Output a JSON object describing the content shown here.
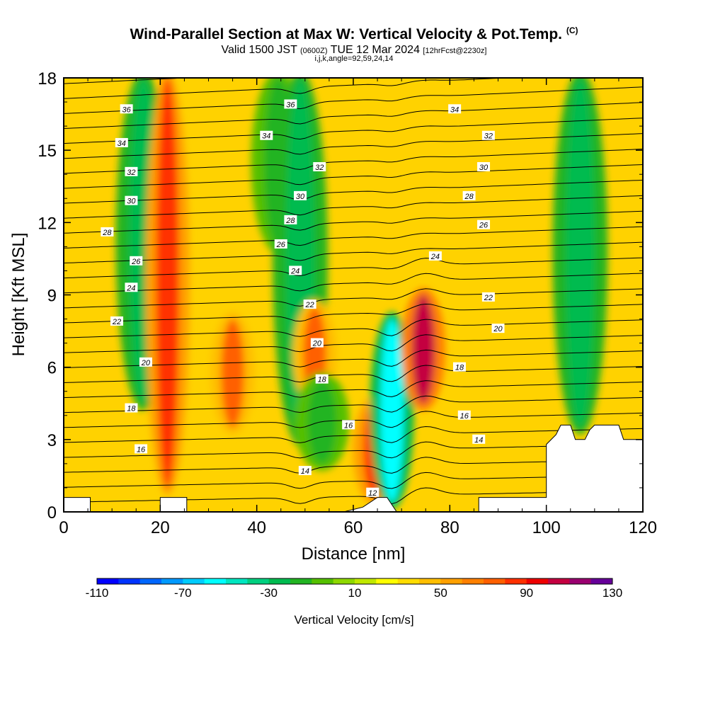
{
  "title": {
    "main": "Wind-Parallel Section at Max W: Vertical Velocity & Pot.Temp.",
    "mark": "(C)"
  },
  "subtitle": {
    "valid": "Valid 1500 JST",
    "zulu": "(0600Z)",
    "date": "TUE 12 Mar 2024",
    "fcst": "[12hrFcst@2230z]"
  },
  "indices": "i,j,k,angle=92,59,24,14",
  "chart_data": {
    "type": "heatmap",
    "xlabel": "Distance [nm]",
    "ylabel": "Height [Kft MSL]",
    "xlim": [
      0,
      120
    ],
    "ylim": [
      0,
      18
    ],
    "x_ticks": [
      0,
      20,
      40,
      60,
      80,
      100,
      120
    ],
    "y_ticks": [
      0,
      3,
      6,
      9,
      12,
      15,
      18
    ],
    "colorbar": {
      "label": "Vertical Velocity [cm/s]",
      "min": -110,
      "max": 130,
      "step": 10,
      "tick_labels": [
        -110,
        -70,
        -30,
        10,
        50,
        90,
        130
      ],
      "colors": [
        "#0000ff",
        "#0033ff",
        "#0066ff",
        "#0099ff",
        "#00ccff",
        "#00ffff",
        "#00e6c0",
        "#00d080",
        "#00bb50",
        "#22b422",
        "#55c000",
        "#8ed800",
        "#c0e800",
        "#ffff00",
        "#ffdc00",
        "#ffbe00",
        "#ffa000",
        "#ff8000",
        "#ff6000",
        "#ff3000",
        "#ee0000",
        "#c40040",
        "#9a0070",
        "#660099"
      ]
    },
    "vertical_velocity_features": [
      {
        "x_center": 16.5,
        "z_bottom": 4.5,
        "z_top": 18,
        "value": -30
      },
      {
        "x_center": 21.5,
        "z_bottom": 1.0,
        "z_top": 18,
        "value": 80
      },
      {
        "x_center": 35,
        "z_bottom": 3.5,
        "z_top": 8.0,
        "value": 70
      },
      {
        "x_center": 44.5,
        "z_bottom": 11.0,
        "z_top": 18,
        "value": -20
      },
      {
        "x_center": 49,
        "z_bottom": 3.0,
        "z_top": 18,
        "value": -30
      },
      {
        "x_center": 52,
        "z_bottom": 4.5,
        "z_top": 8.5,
        "value": 70
      },
      {
        "x_center": 53.5,
        "z_bottom": 2.0,
        "z_top": 5.5,
        "value": -20
      },
      {
        "x_center": 64.5,
        "z_bottom": 0.6,
        "z_top": 4.5,
        "value": 80
      },
      {
        "x_center": 68,
        "z_bottom": 0.4,
        "z_top": 8.0,
        "value": -60
      },
      {
        "x_center": 74.5,
        "z_bottom": 4.5,
        "z_top": 9.0,
        "value": 100
      },
      {
        "x_center": 107,
        "z_bottom": 3.5,
        "z_top": 18,
        "value": -30
      }
    ],
    "potential_temperature_contours": {
      "unit": "C",
      "levels": [
        12,
        14,
        16,
        18,
        20,
        22,
        24,
        26,
        28,
        30,
        32,
        34,
        36
      ],
      "labels": [
        {
          "text": "36",
          "x": 13,
          "z": 16.7
        },
        {
          "text": "34",
          "x": 12,
          "z": 15.3
        },
        {
          "text": "32",
          "x": 14,
          "z": 14.1
        },
        {
          "text": "30",
          "x": 14,
          "z": 12.9
        },
        {
          "text": "28",
          "x": 9,
          "z": 11.6
        },
        {
          "text": "26",
          "x": 15,
          "z": 10.4
        },
        {
          "text": "24",
          "x": 14,
          "z": 9.3
        },
        {
          "text": "22",
          "x": 11,
          "z": 7.9
        },
        {
          "text": "20",
          "x": 17,
          "z": 6.2
        },
        {
          "text": "18",
          "x": 14,
          "z": 4.3
        },
        {
          "text": "16",
          "x": 16,
          "z": 2.6
        },
        {
          "text": "36",
          "x": 47,
          "z": 16.9
        },
        {
          "text": "34",
          "x": 42,
          "z": 15.6
        },
        {
          "text": "32",
          "x": 53,
          "z": 14.3
        },
        {
          "text": "30",
          "x": 49,
          "z": 13.1
        },
        {
          "text": "28",
          "x": 47,
          "z": 12.1
        },
        {
          "text": "26",
          "x": 45,
          "z": 11.1
        },
        {
          "text": "24",
          "x": 48,
          "z": 10.0
        },
        {
          "text": "22",
          "x": 51,
          "z": 8.6
        },
        {
          "text": "20",
          "x": 52.5,
          "z": 7.0
        },
        {
          "text": "18",
          "x": 53.5,
          "z": 5.5
        },
        {
          "text": "16",
          "x": 59,
          "z": 3.6
        },
        {
          "text": "14",
          "x": 50,
          "z": 1.7
        },
        {
          "text": "12",
          "x": 64,
          "z": 0.8
        },
        {
          "text": "34",
          "x": 81,
          "z": 16.7
        },
        {
          "text": "32",
          "x": 88,
          "z": 15.6
        },
        {
          "text": "30",
          "x": 87,
          "z": 14.3
        },
        {
          "text": "28",
          "x": 84,
          "z": 13.1
        },
        {
          "text": "26",
          "x": 87,
          "z": 11.9
        },
        {
          "text": "24",
          "x": 77,
          "z": 10.6
        },
        {
          "text": "22",
          "x": 88,
          "z": 8.9
        },
        {
          "text": "20",
          "x": 90,
          "z": 7.6
        },
        {
          "text": "18",
          "x": 82,
          "z": 6.0
        },
        {
          "text": "16",
          "x": 83,
          "z": 4.0
        },
        {
          "text": "14",
          "x": 86,
          "z": 3.0
        }
      ]
    },
    "terrain": {
      "description_points_nm_kft": [
        [
          0,
          0.6
        ],
        [
          5.5,
          0.6
        ],
        [
          5.5,
          0
        ],
        [
          20,
          0
        ],
        [
          20,
          0.6
        ],
        [
          25.5,
          0.6
        ],
        [
          25.5,
          0
        ],
        [
          58,
          0
        ],
        [
          62,
          0.2
        ],
        [
          65,
          0.6
        ],
        [
          67,
          0.6
        ],
        [
          69,
          0
        ],
        [
          86,
          0
        ],
        [
          86,
          0.6
        ],
        [
          100,
          0.6
        ],
        [
          100,
          2.8
        ],
        [
          102,
          3.2
        ],
        [
          103,
          3.6
        ],
        [
          105,
          3.6
        ],
        [
          106,
          3.0
        ],
        [
          108,
          3.0
        ],
        [
          109,
          3.4
        ],
        [
          110,
          3.6
        ],
        [
          115,
          3.6
        ],
        [
          116,
          3.0
        ],
        [
          120,
          3.0
        ],
        [
          120,
          0
        ]
      ]
    }
  }
}
